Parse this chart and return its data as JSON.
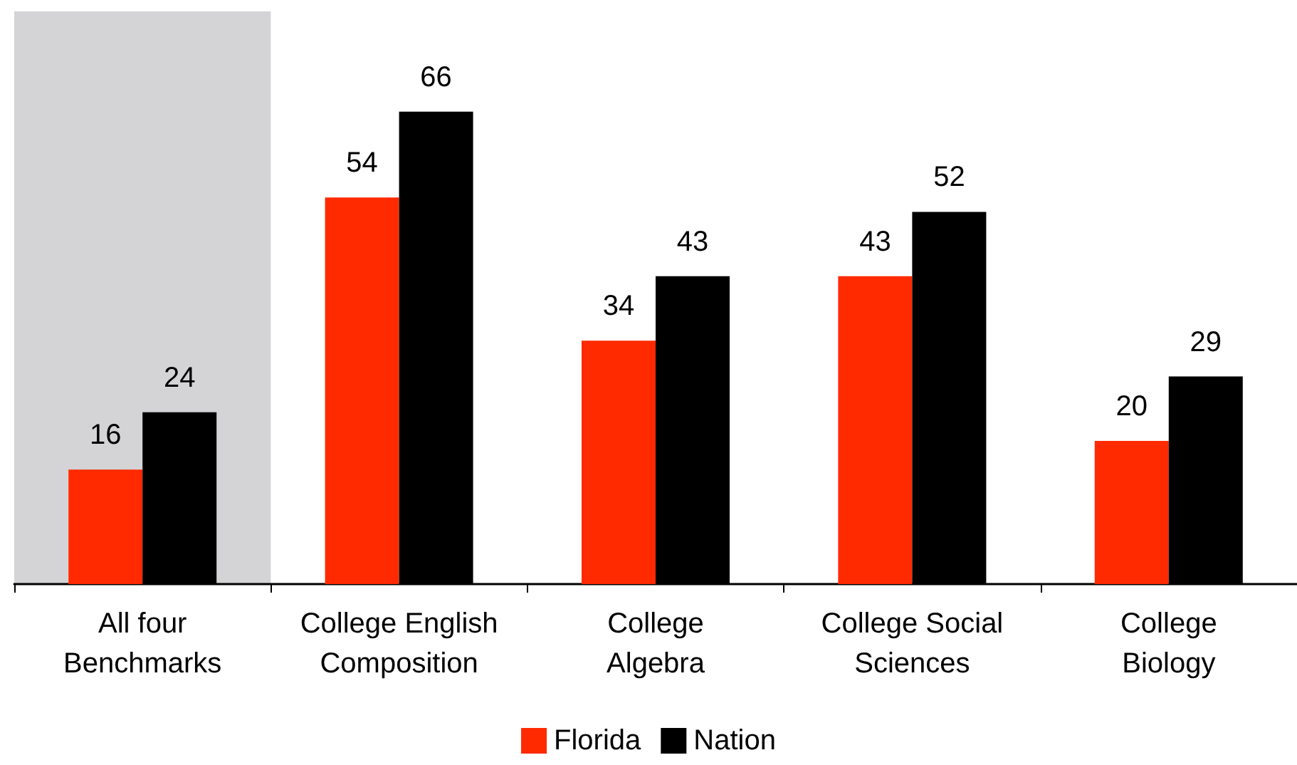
{
  "chart_data": {
    "type": "bar",
    "categories": [
      "All four\nBenchmarks",
      "College English\nComposition",
      "College\nAlgebra",
      "College Social\nSciences",
      "College\nBiology"
    ],
    "series": [
      {
        "name": "Florida",
        "color": "#ff2a00",
        "values": [
          16,
          54,
          34,
          43,
          20
        ]
      },
      {
        "name": "Nation",
        "color": "#000000",
        "values": [
          24,
          66,
          43,
          52,
          29
        ]
      }
    ],
    "ylim": [
      0,
      80
    ],
    "tick_labels": "x",
    "data_labels": true,
    "legend": "bottom",
    "grid": false,
    "bands": [
      {
        "axis": "x",
        "from": "All four\nBenchmarks",
        "to": "All four\nBenchmarks",
        "color": "#d4d4d6"
      }
    ]
  }
}
